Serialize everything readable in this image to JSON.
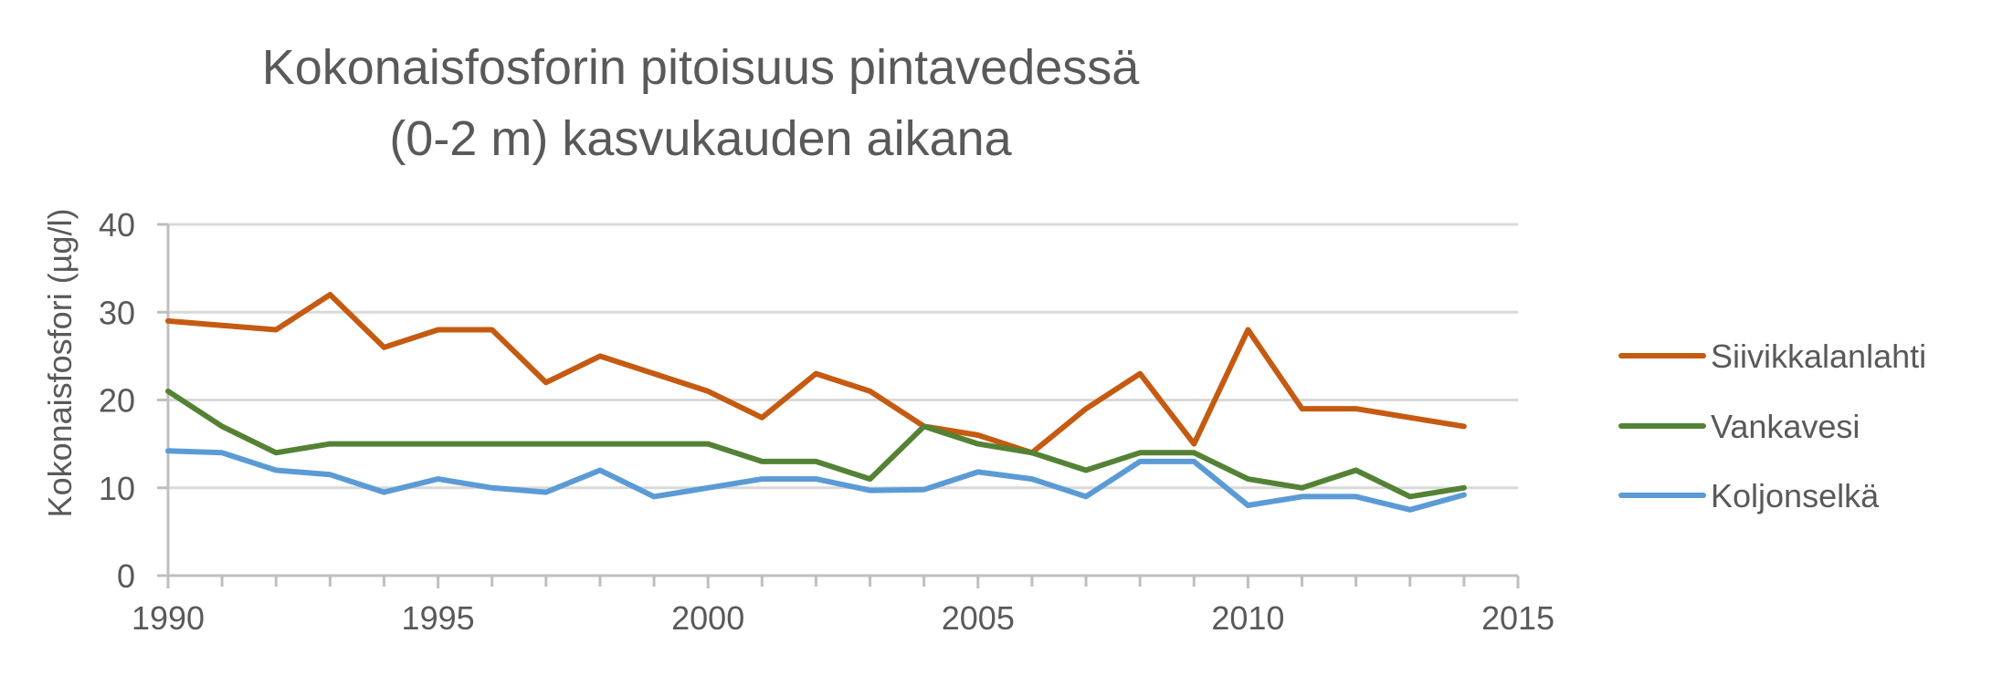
{
  "chart_data": {
    "type": "line",
    "title_lines": [
      "Kokonaisfosforin pitoisuus pintavedessä",
      "(0-2 m) kasvukauden aikana"
    ],
    "xlabel": "",
    "ylabel": "Kokonaisfosfori (µg/l)",
    "xlim": [
      1990,
      2015
    ],
    "ylim": [
      0,
      40
    ],
    "x_ticks": [
      1990,
      1995,
      2000,
      2005,
      2010,
      2015
    ],
    "y_ticks": [
      0,
      10,
      20,
      30,
      40
    ],
    "grid": "horizontal",
    "legend_position": "right",
    "x": [
      1990,
      1991,
      1992,
      1993,
      1994,
      1995,
      1996,
      1997,
      1998,
      1999,
      2000,
      2001,
      2002,
      2003,
      2004,
      2005,
      2006,
      2007,
      2008,
      2009,
      2010,
      2011,
      2012,
      2013,
      2014
    ],
    "series": [
      {
        "name": "Siivikkalanlahti",
        "color": "#C55A11",
        "values": [
          29,
          28.5,
          28,
          32,
          26,
          28,
          28,
          22,
          25,
          23,
          21,
          18,
          23,
          21,
          17,
          16,
          14,
          19,
          23,
          15,
          28,
          19,
          19,
          18,
          17
        ]
      },
      {
        "name": "Vankavesi",
        "color": "#548235",
        "values": [
          21,
          17,
          14,
          15,
          15,
          15,
          15,
          15,
          15,
          15,
          15,
          13,
          13,
          11,
          17,
          15,
          14,
          12,
          14,
          14,
          11,
          10,
          12,
          9,
          10
        ]
      },
      {
        "name": "Koljonselkä",
        "color": "#5B9BD5",
        "values": [
          14.2,
          14,
          12,
          11.5,
          9.5,
          11,
          10,
          9.5,
          12,
          9,
          10,
          11,
          11,
          9.7,
          9.8,
          11.8,
          11,
          9,
          13,
          13,
          8,
          9,
          9,
          7.5,
          9.2
        ]
      }
    ]
  },
  "colors": {
    "text": "#595959",
    "axis": "#BFBFBF",
    "grid": "#D9D9D9"
  }
}
